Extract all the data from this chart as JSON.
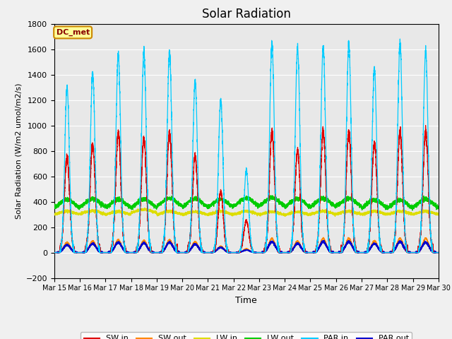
{
  "title": "Solar Radiation",
  "ylabel": "Solar Radiation (W/m2 umol/m2/s)",
  "xlabel": "Time",
  "ylim": [
    -200,
    1800
  ],
  "xlim": [
    0,
    15
  ],
  "background_color": "#e8e8e8",
  "plot_bg": "#dcdcdc",
  "annotation": "DC_met",
  "annotation_bg": "#ffff99",
  "annotation_border": "#cc8800",
  "series": {
    "SW_in": {
      "color": "#dd0000",
      "label": "SW in"
    },
    "SW_out": {
      "color": "#ff8800",
      "label": "SW out"
    },
    "LW_in": {
      "color": "#dddd00",
      "label": "LW in"
    },
    "LW_out": {
      "color": "#00cc00",
      "label": "LW out"
    },
    "PAR_in": {
      "color": "#00ccff",
      "label": "PAR in"
    },
    "PAR_out": {
      "color": "#0000cc",
      "label": "PAR out"
    }
  },
  "xtick_labels": [
    "Mar 15",
    "Mar 16",
    "Mar 17",
    "Mar 18",
    "Mar 19",
    "Mar 20",
    "Mar 21",
    "Mar 22",
    "Mar 23",
    "Mar 24",
    "Mar 25",
    "Mar 26",
    "Mar 27",
    "Mar 28",
    "Mar 29",
    "Mar 30"
  ],
  "xtick_positions": [
    0,
    1,
    2,
    3,
    4,
    5,
    6,
    7,
    8,
    9,
    10,
    11,
    12,
    13,
    14,
    15
  ],
  "yticks": [
    -200,
    0,
    200,
    400,
    600,
    800,
    1000,
    1200,
    1400,
    1600,
    1800
  ]
}
